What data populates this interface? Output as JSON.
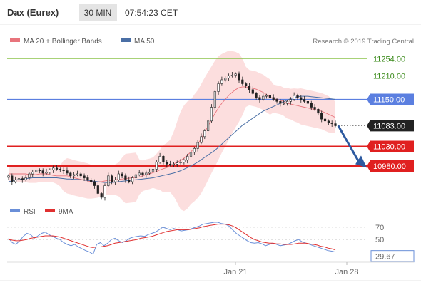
{
  "header": {
    "instrument": "Dax (Eurex)",
    "timeframe": "30 MIN",
    "time": "07:54:23 CET"
  },
  "colors": {
    "ma20": "#e8747c",
    "bollinger_fill": "#fbd3d3",
    "ma50": "#4a6fa5",
    "candle": "#222222",
    "rsi": "#6a8fd8",
    "rsi_ma": "#e03030",
    "resistance": "#8bc34a",
    "pivot": "#5b7fe0",
    "support": "#e02020",
    "last_price": "#222222",
    "arrow": "#2d5aa0"
  },
  "chart_data": [
    {
      "type": "candlestick",
      "legend": [
        {
          "label": "MA 20 + Bollinger Bands",
          "color": "#e8747c"
        },
        {
          "label": "MA 50",
          "color": "#4a6fa5"
        }
      ],
      "credit": "Research © 2019 Trading Central",
      "x_ticks": [
        "Jan 21",
        "Jan 28"
      ],
      "ylim": [
        10880,
        11280
      ],
      "levels": [
        {
          "value": 11254,
          "label": "11254.00",
          "kind": "resistance"
        },
        {
          "value": 11210,
          "label": "11210.00",
          "kind": "resistance"
        },
        {
          "value": 11150,
          "label": "11150.00",
          "kind": "pivot"
        },
        {
          "value": 11083,
          "label": "11083.00",
          "kind": "last"
        },
        {
          "value": 11030,
          "label": "11030.00",
          "kind": "support"
        },
        {
          "value": 10980,
          "label": "10980.00",
          "kind": "support"
        }
      ],
      "close_series": [
        10955,
        10940,
        10945,
        10948,
        10945,
        10950,
        10960,
        10965,
        10970,
        10968,
        10962,
        10965,
        10970,
        10975,
        10972,
        10970,
        10968,
        10962,
        10955,
        10958,
        10960,
        10955,
        10950,
        10945,
        10940,
        10930,
        10910,
        10900,
        10930,
        10955,
        10940,
        10945,
        10960,
        10955,
        10945,
        10940,
        10950,
        10958,
        10962,
        10958,
        10962,
        10965,
        10972,
        10990,
        11005,
        10990,
        10985,
        10983,
        10985,
        10988,
        10990,
        10995,
        11005,
        11015,
        11025,
        11040,
        11055,
        11070,
        11095,
        11130,
        11170,
        11190,
        11200,
        11205,
        11210,
        11212,
        11215,
        11200,
        11190,
        11185,
        11175,
        11165,
        11155,
        11150,
        11158,
        11160,
        11155,
        11150,
        11145,
        11140,
        11140,
        11145,
        11150,
        11160,
        11155,
        11150,
        11145,
        11140,
        11130,
        11125,
        11115,
        11100,
        11095,
        11090,
        11088,
        11083
      ],
      "pane_series": [
        {
          "name": "MA 20",
          "values": [
            10960,
            10960,
            10960,
            10960,
            10960,
            10960,
            10958,
            10958,
            10958,
            10960,
            10960,
            10960,
            10958,
            10956,
            10955,
            10955,
            10955,
            10955,
            10953,
            10950,
            10948,
            10946,
            10944,
            10942,
            10940,
            10940,
            10940,
            10940,
            10942,
            10943,
            10943,
            10945,
            10946,
            10947,
            10948,
            10949,
            10950,
            10951,
            10952,
            10955,
            10958,
            10960,
            10963,
            10966,
            10970,
            10973,
            10976,
            10980,
            10985,
            10990,
            10994,
            11000,
            11008,
            11016,
            11026,
            11036,
            11050,
            11066,
            11082,
            11098,
            11114,
            11128,
            11140,
            11150,
            11160,
            11168,
            11175,
            11180,
            11182,
            11182,
            11180,
            11178,
            11176,
            11172,
            11168,
            11162,
            11156,
            11152,
            11150,
            11148,
            11144,
            11140,
            11138,
            11136,
            11134,
            11132,
            11130,
            11128,
            11126,
            11124,
            11122,
            11120,
            11116,
            11112,
            11108,
            11104
          ]
        },
        {
          "name": "MA 50",
          "values": [
            10940,
            10942,
            10944,
            10946,
            10947,
            10948,
            10949,
            10950,
            10950,
            10950,
            10950,
            10950,
            10950,
            10950,
            10950,
            10949,
            10948,
            10947,
            10947,
            10946,
            10946,
            10945,
            10944,
            10943,
            10942,
            10941,
            10940,
            10939,
            10938,
            10938,
            10938,
            10939,
            10940,
            10941,
            10942,
            10943,
            10944,
            10945,
            10946,
            10947,
            10948,
            10949,
            10950,
            10952,
            10954,
            10956,
            10958,
            10960,
            10962,
            10965,
            10968,
            10972,
            10976,
            10980,
            10985,
            10990,
            10996,
            11002,
            11008,
            11014,
            11020,
            11028,
            11036,
            11044,
            11052,
            11060,
            11068,
            11076,
            11084,
            11090,
            11096,
            11102,
            11108,
            11114,
            11120,
            11124,
            11128,
            11132,
            11136,
            11140,
            11144,
            11148,
            11152,
            11155,
            11157,
            11158,
            11158,
            11158,
            11157,
            11156,
            11155,
            11154,
            11153,
            11152,
            11151,
            11150
          ]
        }
      ]
    },
    {
      "type": "line",
      "legend": [
        {
          "label": "RSI",
          "color": "#6a8fd8"
        },
        {
          "label": "9MA",
          "color": "#e03030"
        }
      ],
      "ylim": [
        20,
        85
      ],
      "levels": [
        70,
        50
      ],
      "current_label": "29.67",
      "series": [
        {
          "name": "RSI",
          "values": [
            52,
            45,
            42,
            48,
            55,
            60,
            58,
            52,
            56,
            60,
            62,
            58,
            55,
            52,
            50,
            45,
            42,
            40,
            42,
            38,
            35,
            32,
            30,
            26,
            42,
            45,
            40,
            44,
            50,
            52,
            48,
            45,
            48,
            52,
            54,
            55,
            56,
            55,
            58,
            60,
            62,
            66,
            70,
            68,
            66,
            68,
            66,
            64,
            65,
            66,
            68,
            70,
            72,
            75,
            76,
            77,
            78,
            78,
            76,
            75,
            72,
            66,
            60,
            56,
            52,
            48,
            45,
            44,
            45,
            43,
            40,
            42,
            44,
            42,
            40,
            41,
            42,
            45,
            48,
            50,
            46,
            44,
            42,
            40,
            38,
            36,
            34,
            32,
            31,
            29.67
          ]
        },
        {
          "name": "9MA",
          "values": [
            50,
            49,
            48,
            48,
            49,
            50,
            52,
            53,
            54,
            55,
            56,
            56,
            56,
            55,
            54,
            52,
            50,
            48,
            46,
            44,
            42,
            40,
            38,
            37,
            38,
            38,
            39,
            40,
            42,
            44,
            45,
            46,
            47,
            48,
            49,
            50,
            52,
            53,
            54,
            55,
            57,
            59,
            61,
            63,
            64,
            65,
            66,
            66,
            66,
            66,
            67,
            68,
            69,
            71,
            72,
            73,
            74,
            75,
            75,
            75,
            74,
            72,
            69,
            65,
            61,
            57,
            53,
            50,
            48,
            46,
            45,
            44,
            44,
            43,
            43,
            42,
            42,
            42,
            43,
            44,
            44,
            44,
            43,
            42,
            41,
            39,
            38,
            36,
            35,
            33
          ]
        }
      ]
    }
  ]
}
